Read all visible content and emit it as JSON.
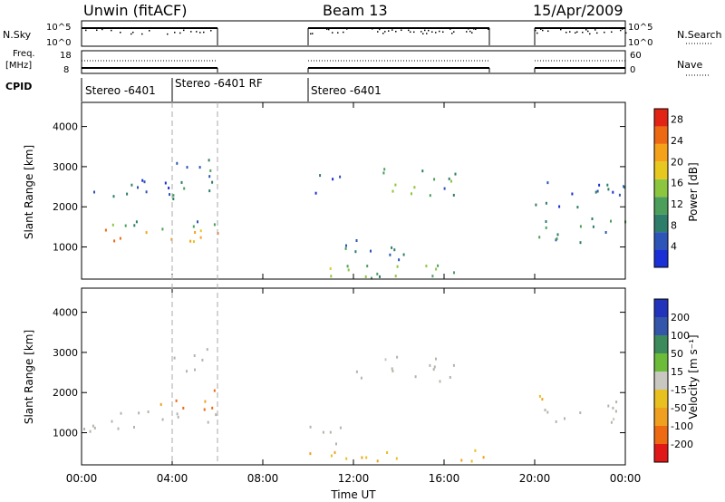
{
  "header": {
    "station": "Unwin (fitACF)",
    "beam": "Beam 13",
    "date": "15/Apr/2009"
  },
  "nsky_panel": {
    "label": "N.Sky",
    "right_label": "N.Search",
    "tick_top": "10^5",
    "tick_bottom": "10^0"
  },
  "freq_panel": {
    "label_line1": "Freq.",
    "label_line2": "[MHz]",
    "right_label": "Nave",
    "left_ticks": [
      "18",
      "8"
    ],
    "right_ticks": [
      "60",
      "0"
    ]
  },
  "cpid": {
    "label": "CPID",
    "segments": [
      {
        "label": "Stereo -6401",
        "start_hour": 0
      },
      {
        "label": "Stereo -6401 RF",
        "start_hour": 4
      },
      {
        "label": "Stereo -6401",
        "start_hour": 10
      }
    ]
  },
  "colors": {
    "power_scale": [
      "#1a2fd6",
      "#2d55b8",
      "#2e7d6a",
      "#4b9f5a",
      "#8cc63f",
      "#e6c81f",
      "#f5a21a",
      "#ee6a12",
      "#e22414"
    ],
    "velocity_scale": [
      "#2233bb",
      "#3355aa",
      "#3d8a5c",
      "#6cbc3a",
      "#c8c8c0",
      "#e8c020",
      "#f0a020",
      "#ee6a12",
      "#e01818"
    ],
    "ground_scatter": "#b4b4ac"
  },
  "chart_data": [
    {
      "type": "heatmap",
      "name": "power",
      "ylabel": "Slant Range [km]",
      "x_range_hours": [
        0,
        24
      ],
      "ylim": [
        200,
        4600
      ],
      "yticks": [
        1000,
        2000,
        3000,
        4000
      ],
      "colorbar": {
        "label": "Power [dB]",
        "ticks": [
          4,
          8,
          12,
          16,
          20,
          24,
          28
        ],
        "range": [
          0,
          30
        ]
      },
      "data_gaps_hours": [
        [
          6,
          10
        ],
        [
          18,
          20
        ]
      ],
      "mode_change_hours": [
        4,
        6
      ],
      "scatter_regions": [
        {
          "x": [
            0,
            6
          ],
          "y": [
            1100,
            1500
          ],
          "value": 22
        },
        {
          "x": [
            0,
            6
          ],
          "y": [
            1450,
            1750
          ],
          "value": 10
        },
        {
          "x": [
            0.5,
            4
          ],
          "y": [
            2200,
            2900
          ],
          "value": 6
        },
        {
          "x": [
            4,
            6
          ],
          "y": [
            1900,
            3200
          ],
          "value": 8
        },
        {
          "x": [
            10,
            18
          ],
          "y": [
            250,
            700
          ],
          "value": 12
        },
        {
          "x": [
            10.5,
            15
          ],
          "y": [
            700,
            1200
          ],
          "value": 8
        },
        {
          "x": [
            12,
            16.5
          ],
          "y": [
            2300,
            3000
          ],
          "value": 10
        },
        {
          "x": [
            10,
            11.5
          ],
          "y": [
            2300,
            2900
          ],
          "value": 6
        },
        {
          "x": [
            20,
            24
          ],
          "y": [
            1100,
            1800
          ],
          "value": 10
        },
        {
          "x": [
            20,
            24
          ],
          "y": [
            2000,
            2800
          ],
          "value": 5
        }
      ]
    },
    {
      "type": "heatmap",
      "name": "velocity",
      "ylabel": "Slant Range [km]",
      "xlabel": "Time UT",
      "x_range_hours": [
        0,
        24
      ],
      "xticks": [
        "00:00",
        "04:00",
        "08:00",
        "12:00",
        "16:00",
        "20:00",
        "00:00"
      ],
      "ylim": [
        200,
        4600
      ],
      "yticks": [
        1000,
        2000,
        3000,
        4000
      ],
      "colorbar": {
        "label": "Velocity [m s⁻¹]",
        "ticks": [
          "200",
          "100",
          "50",
          "15",
          "-15",
          "-50",
          "-100",
          "-200"
        ]
      },
      "data_gaps_hours": [
        [
          6,
          10
        ],
        [
          18,
          20
        ]
      ],
      "scatter_regions": [
        {
          "x": [
            0,
            6
          ],
          "y": [
            1050,
            1600
          ],
          "value": 0,
          "ground_scatter": true
        },
        {
          "x": [
            3.3,
            6
          ],
          "y": [
            1600,
            2200
          ],
          "value": -110
        },
        {
          "x": [
            4,
            6
          ],
          "y": [
            2500,
            3200
          ],
          "value": 0,
          "ground_scatter": true
        },
        {
          "x": [
            10,
            18
          ],
          "y": [
            250,
            600
          ],
          "value": -50
        },
        {
          "x": [
            10,
            12
          ],
          "y": [
            600,
            1200
          ],
          "value": 0,
          "ground_scatter": true
        },
        {
          "x": [
            12,
            16.5
          ],
          "y": [
            2300,
            3000
          ],
          "value": 0,
          "ground_scatter": true
        },
        {
          "x": [
            20,
            24
          ],
          "y": [
            1200,
            1800
          ],
          "value": 0,
          "ground_scatter": true
        },
        {
          "x": [
            20,
            21
          ],
          "y": [
            1800,
            2200
          ],
          "value": -60
        }
      ]
    }
  ]
}
